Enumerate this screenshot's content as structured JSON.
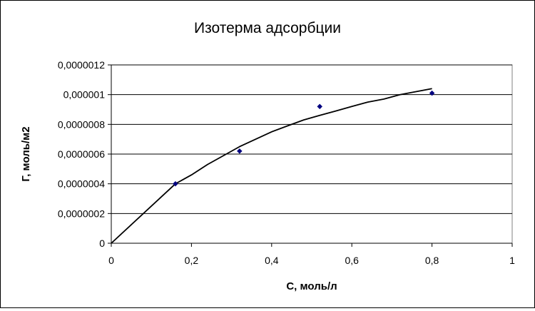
{
  "chart_data": {
    "type": "scatter",
    "title": "Изотерма адсорбции",
    "xlabel": "С, моль/л",
    "ylabel": "Г, моль/м2",
    "xlim": [
      0,
      1
    ],
    "ylim": [
      0,
      1.2e-06
    ],
    "x_ticks": [
      0,
      0.2,
      0.4,
      0.6,
      0.8,
      1
    ],
    "x_tick_labels": [
      "0",
      "0,2",
      "0,4",
      "0,6",
      "0,8",
      "1"
    ],
    "y_ticks": [
      0,
      2e-07,
      4e-07,
      6e-07,
      8e-07,
      1e-06,
      1.2e-06
    ],
    "y_tick_labels": [
      "0",
      "0,0000002",
      "0,0000004",
      "0,0000006",
      "0,0000008",
      "0,000001",
      "0,0000012"
    ],
    "grid": "horizontal",
    "legend": "none",
    "series": [
      {
        "kind": "points",
        "marker": "diamond",
        "color": "#000080",
        "x": [
          0.16,
          0.32,
          0.52,
          0.8
        ],
        "y": [
          4e-07,
          6.2e-07,
          9.2e-07,
          1.01e-06
        ]
      },
      {
        "kind": "line",
        "color": "#000000",
        "x": [
          0,
          0.16,
          0.2,
          0.24,
          0.28,
          0.32,
          0.36,
          0.4,
          0.44,
          0.48,
          0.52,
          0.56,
          0.6,
          0.64,
          0.68,
          0.72,
          0.76,
          0.8
        ],
        "y": [
          0,
          4e-07,
          4.6e-07,
          5.3e-07,
          5.9e-07,
          6.5e-07,
          7e-07,
          7.5e-07,
          7.9e-07,
          8.3e-07,
          8.6e-07,
          8.9e-07,
          9.2e-07,
          9.5e-07,
          9.7e-07,
          1e-06,
          1.02e-06,
          1.04e-06
        ]
      }
    ]
  }
}
